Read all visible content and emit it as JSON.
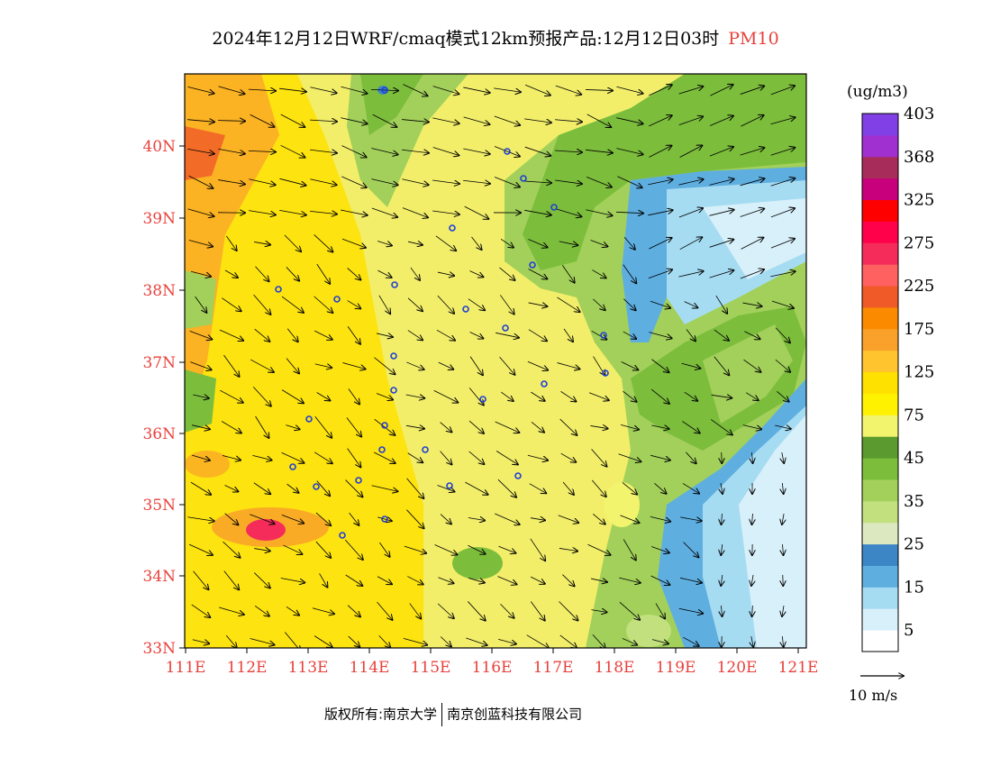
{
  "title": {
    "text": "2024年12月12日WRF/cmaq模式12km预报产品:12月12日03时",
    "variable": "PM10"
  },
  "map": {
    "lat_labels": [
      "40N",
      "39N",
      "38N",
      "37N",
      "36N",
      "35N",
      "34N",
      "33N"
    ],
    "lon_labels": [
      "111E",
      "112E",
      "113E",
      "114E",
      "115E",
      "116E",
      "117E",
      "118E",
      "119E",
      "120E",
      "121E"
    ],
    "label_color": "#e8413c"
  },
  "colorbar": {
    "unit": "(ug/m3)",
    "colors": [
      "#ffffff",
      "#d8f0fa",
      "#a6dcf2",
      "#5eaee0",
      "#3c86c6",
      "#dce9c0",
      "#c2e07e",
      "#a2d05a",
      "#7cbd3c",
      "#5a9a2e",
      "#f2f46e",
      "#fff200",
      "#ffe100",
      "#ffc42e",
      "#f9a12a",
      "#fb8a00",
      "#f05a28",
      "#ff6060",
      "#f52c5a",
      "#ff004b",
      "#ff0000",
      "#c8007c",
      "#a82c5a",
      "#a030d0",
      "#8040e6"
    ],
    "labels": [
      "5",
      "15",
      "25",
      "35",
      "45",
      "75",
      "125",
      "175",
      "225",
      "275",
      "325",
      "368",
      "403"
    ]
  },
  "wind_scale": {
    "label": "10 m/s"
  },
  "footer": {
    "left": "版权所有:南京大学",
    "right": "南京创蓝科技有限公司"
  }
}
